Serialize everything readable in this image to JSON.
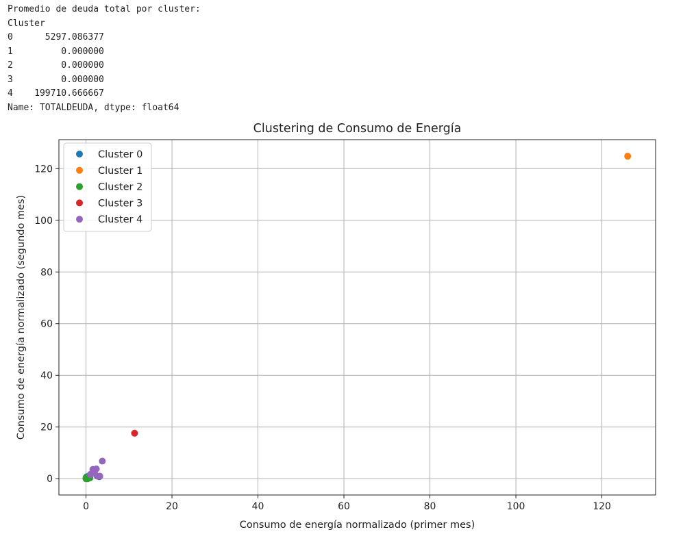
{
  "output_text": {
    "lines": [
      "Promedio de deuda total por cluster:",
      "Cluster",
      "0      5297.086377",
      "1         0.000000",
      "2         0.000000",
      "3         0.000000",
      "4    199710.666667",
      "Name: TOTALDEUDA, dtype: float64"
    ]
  },
  "chart_data": {
    "type": "scatter",
    "title": "Clustering de Consumo de Energía",
    "xlabel": "Consumo de energía normalizado (primer mes)",
    "ylabel": "Consumo de energía normalizado (segundo mes)",
    "xlim": [
      -6.3,
      132.5
    ],
    "ylim": [
      -6.3,
      131.2
    ],
    "xticks": [
      0,
      20,
      40,
      60,
      80,
      100,
      120
    ],
    "yticks": [
      0,
      20,
      40,
      60,
      80,
      100,
      120
    ],
    "grid": true,
    "legend_position": "top-left",
    "series": [
      {
        "name": "Cluster 0",
        "color": "#1f77b4",
        "points": [
          [
            0.1,
            0.1
          ],
          [
            0.3,
            0.4
          ],
          [
            0.5,
            0.2
          ],
          [
            0.7,
            0.9
          ],
          [
            1.0,
            1.2
          ],
          [
            0.2,
            0.8
          ],
          [
            3.1,
            0.8
          ],
          [
            0.6,
            0.5
          ]
        ]
      },
      {
        "name": "Cluster 1",
        "color": "#ff7f0e",
        "points": [
          [
            126.0,
            124.8
          ]
        ]
      },
      {
        "name": "Cluster 2",
        "color": "#2ca02c",
        "points": [
          [
            0.0,
            0.0
          ],
          [
            0.1,
            0.2
          ],
          [
            0.2,
            0.1
          ],
          [
            0.3,
            0.3
          ],
          [
            0.4,
            0.0
          ],
          [
            0.0,
            0.4
          ],
          [
            0.6,
            0.6
          ],
          [
            0.9,
            0.3
          ]
        ]
      },
      {
        "name": "Cluster 3",
        "color": "#d62728",
        "points": [
          [
            11.3,
            17.6
          ]
        ]
      },
      {
        "name": "Cluster 4",
        "color": "#9467bd",
        "points": [
          [
            3.8,
            6.8
          ],
          [
            2.4,
            3.8
          ],
          [
            1.6,
            3.6
          ],
          [
            1.3,
            2.0
          ],
          [
            2.0,
            2.8
          ],
          [
            2.6,
            1.0
          ],
          [
            3.2,
            1.0
          ],
          [
            1.0,
            1.6
          ]
        ]
      }
    ]
  }
}
